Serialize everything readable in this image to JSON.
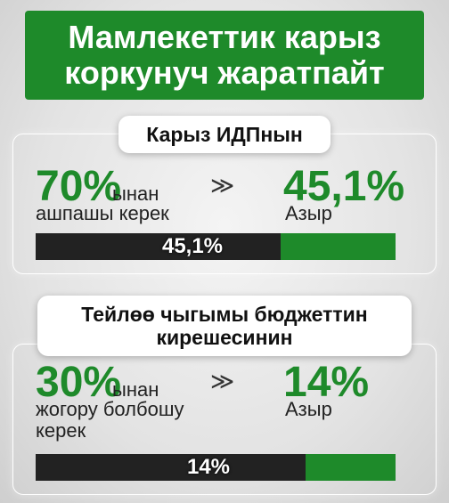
{
  "banner": {
    "line1": "Мамлекеттик карыз",
    "line2": "коркунуч жаратпайт"
  },
  "section1": {
    "title": "Карыз ИДПнын",
    "target_value": "70%",
    "target_suffix": "ынан",
    "target_caption": "ашпашы керек",
    "arrow": "≫",
    "current_value": "45,1%",
    "current_caption": "Азыр",
    "bar_label": "45,1%",
    "bar_fraction": 0.68
  },
  "section2": {
    "title_line1": "Тейлөө чыгымы бюджеттин",
    "title_line2": "кирешесинин",
    "target_value": "30%",
    "target_suffix": "ынан",
    "target_caption_line1": "жогору болбошу",
    "target_caption_line2": "керек",
    "arrow": "≫",
    "current_value": "14%",
    "current_caption": "Азыр",
    "bar_label": "14%",
    "bar_fraction": 0.75
  },
  "colors": {
    "green": "#1e8a2a",
    "dark": "#222222",
    "white": "#ffffff"
  }
}
